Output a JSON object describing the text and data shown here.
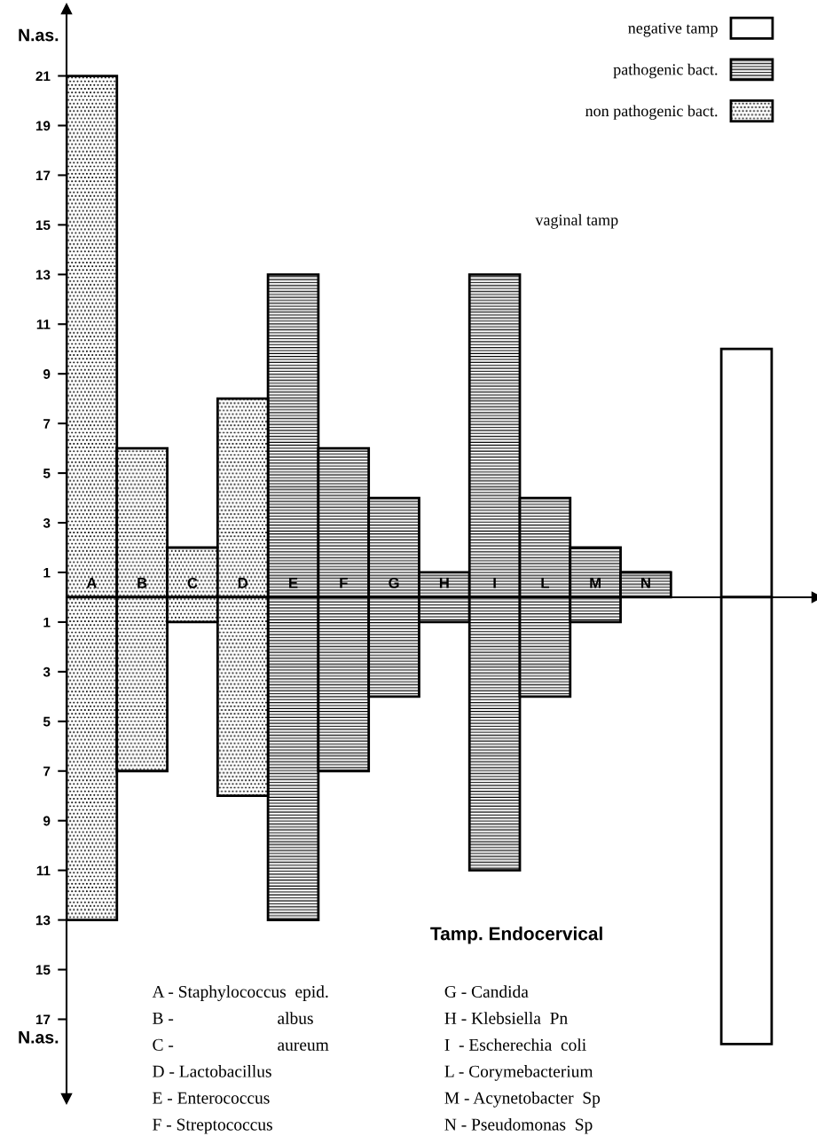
{
  "chart_data": {
    "type": "bar",
    "categories": [
      "A",
      "B",
      "C",
      "D",
      "E",
      "F",
      "G",
      "H",
      "I",
      "L",
      "M",
      "N",
      null,
      null
    ],
    "series": [
      {
        "name": "negative tamp",
        "color": "#ffffff",
        "values": [
          null,
          null,
          null,
          null,
          null,
          null,
          null,
          null,
          null,
          null,
          null,
          null,
          null,
          10
        ]
      },
      {
        "name": "pathogenic bact.",
        "color": "#000000",
        "values": [
          null,
          null,
          null,
          null,
          13,
          6,
          4,
          1,
          13,
          4,
          2,
          1,
          null,
          null
        ]
      },
      {
        "name": "non pathogenic bact.",
        "color": "#000000",
        "values": [
          21,
          6,
          2,
          8,
          null,
          null,
          null,
          null,
          null,
          null,
          null,
          null,
          null,
          null
        ]
      },
      {
        "color": "#ffffff",
        "values": [
          null,
          null,
          null,
          null,
          null,
          null,
          null,
          null,
          null,
          null,
          null,
          null,
          null,
          -18
        ]
      },
      {
        "color": "#000000",
        "values": [
          null,
          null,
          null,
          null,
          -13,
          -7,
          -4,
          -1,
          -11,
          -4,
          -1,
          0,
          null,
          null
        ]
      },
      {
        "color": "#000000",
        "values": [
          -13,
          -7,
          -1,
          -8,
          null,
          null,
          null,
          null,
          null,
          null,
          null,
          null,
          null,
          null
        ]
      }
    ],
    "ylabel": "N.as.",
    "ylim": [
      -20.2,
      23.7
    ],
    "yticks": [
      1,
      3,
      5,
      7,
      9,
      11,
      13,
      15,
      17,
      19,
      21,
      {
        "value": -1,
        "label": "1"
      },
      {
        "value": -3,
        "label": "3"
      },
      {
        "value": -5,
        "label": "5"
      },
      {
        "value": -7,
        "label": "7"
      },
      {
        "value": -9,
        "label": "9"
      },
      {
        "value": -11,
        "label": "11"
      },
      {
        "value": -13,
        "label": "13"
      },
      {
        "value": -15,
        "label": "15"
      },
      {
        "value": -17,
        "label": "17"
      }
    ],
    "legend": "top right",
    "stacked": true,
    "grid": false,
    "annotations": [
      "vaginal tamp",
      "Tamp. Endocervical",
      "A - Staphylococcus  epid.",
      "B -                        albus",
      "C -                        aureum",
      "D - Lactobacillus",
      "E - Enterococcus",
      "F - Streptococcus",
      "G - Candida",
      "H - Klebsiella  Pn",
      "I  - Escherechia  coli",
      "L - Corymebacterium",
      "M - Acynetobacter  Sp",
      "N - Pseudomonas  Sp"
    ]
  }
}
